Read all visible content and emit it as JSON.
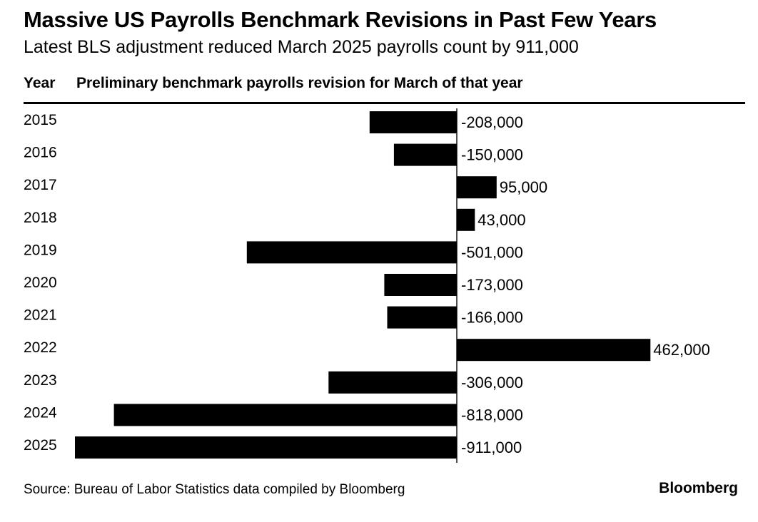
{
  "header": {
    "title": "Massive US Payrolls Benchmark Revisions in Past Few Years",
    "subtitle": "Latest BLS adjustment reduced March 2025 payrolls count by 911,000"
  },
  "columns": {
    "year": "Year",
    "description": "Preliminary benchmark payrolls revision for March of that year"
  },
  "footer": {
    "source": "Source: Bureau of Labor Statistics data compiled by Bloomberg",
    "brand": "Bloomberg"
  },
  "colors": {
    "bar": "#000000",
    "axis": "#000000",
    "text": "#000000"
  },
  "chart_data": {
    "type": "bar",
    "orientation": "horizontal",
    "categories": [
      "2015",
      "2016",
      "2017",
      "2018",
      "2019",
      "2020",
      "2021",
      "2022",
      "2023",
      "2024",
      "2025"
    ],
    "values": [
      -208000,
      -150000,
      95000,
      43000,
      -501000,
      -173000,
      -166000,
      462000,
      -306000,
      -818000,
      -911000
    ],
    "labels": [
      "-208,000",
      "-150,000",
      "95,000",
      "43,000",
      "-501,000",
      "-173,000",
      "-166,000",
      "462,000",
      "-306,000",
      "-818,000",
      "-911,000"
    ],
    "xlim": [
      -911000,
      462000
    ],
    "grid": false,
    "legend": "none"
  }
}
